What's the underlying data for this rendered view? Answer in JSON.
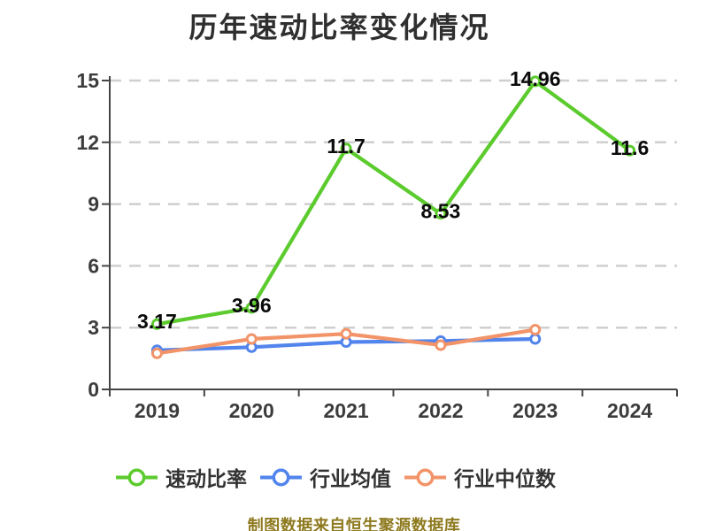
{
  "title": "历年速动比率变化情况",
  "source_note": "制图数据来自恒生聚源数据库",
  "colors": {
    "quick_ratio": "#5BCB2D",
    "industry_avg": "#5184EC",
    "industry_median": "#F29368",
    "axis_line": "#454545",
    "grid_line": "#CFCFCF",
    "tick_label": "#3C3C3C",
    "data_label": "#0A0A0A",
    "title_text": "#2F2F2F",
    "source_text": "#8E7A1F"
  },
  "legend": {
    "items": [
      {
        "key": "quick-ratio",
        "label": "速动比率",
        "color": "#5BCB2D"
      },
      {
        "key": "industry-average",
        "label": "行业均值",
        "color": "#5184EC"
      },
      {
        "key": "industry-median",
        "label": "行业中位数",
        "color": "#F29368"
      }
    ]
  },
  "chart_data": {
    "type": "line",
    "title": "历年速动比率变化情况",
    "categories": [
      "2019",
      "2020",
      "2021",
      "2022",
      "2023",
      "2024"
    ],
    "series": [
      {
        "key": "industry-average",
        "name": "行业均值",
        "color": "#5184EC",
        "values": [
          1.9,
          2.05,
          2.3,
          2.35,
          2.45
        ],
        "labels_shown": false
      },
      {
        "key": "industry-median",
        "name": "行业中位数",
        "color": "#F29368",
        "values": [
          1.75,
          2.45,
          2.7,
          2.15,
          2.9
        ],
        "labels_shown": false
      },
      {
        "key": "quick-ratio",
        "name": "速动比率",
        "color": "#5BCB2D",
        "values": [
          3.17,
          3.96,
          11.7,
          8.53,
          14.96,
          11.6
        ],
        "labels_shown": true,
        "labels": [
          "3.17",
          "3.96",
          "11.7",
          "8.53",
          "14.96",
          "11.6"
        ]
      }
    ],
    "xlabel": "",
    "ylabel": "",
    "ylim": [
      0,
      15
    ],
    "yticks": [
      0,
      3,
      6,
      9,
      12,
      15
    ],
    "grid": "horizontal-dashed",
    "legend_position": "bottom",
    "marker": "hollow-circle"
  }
}
